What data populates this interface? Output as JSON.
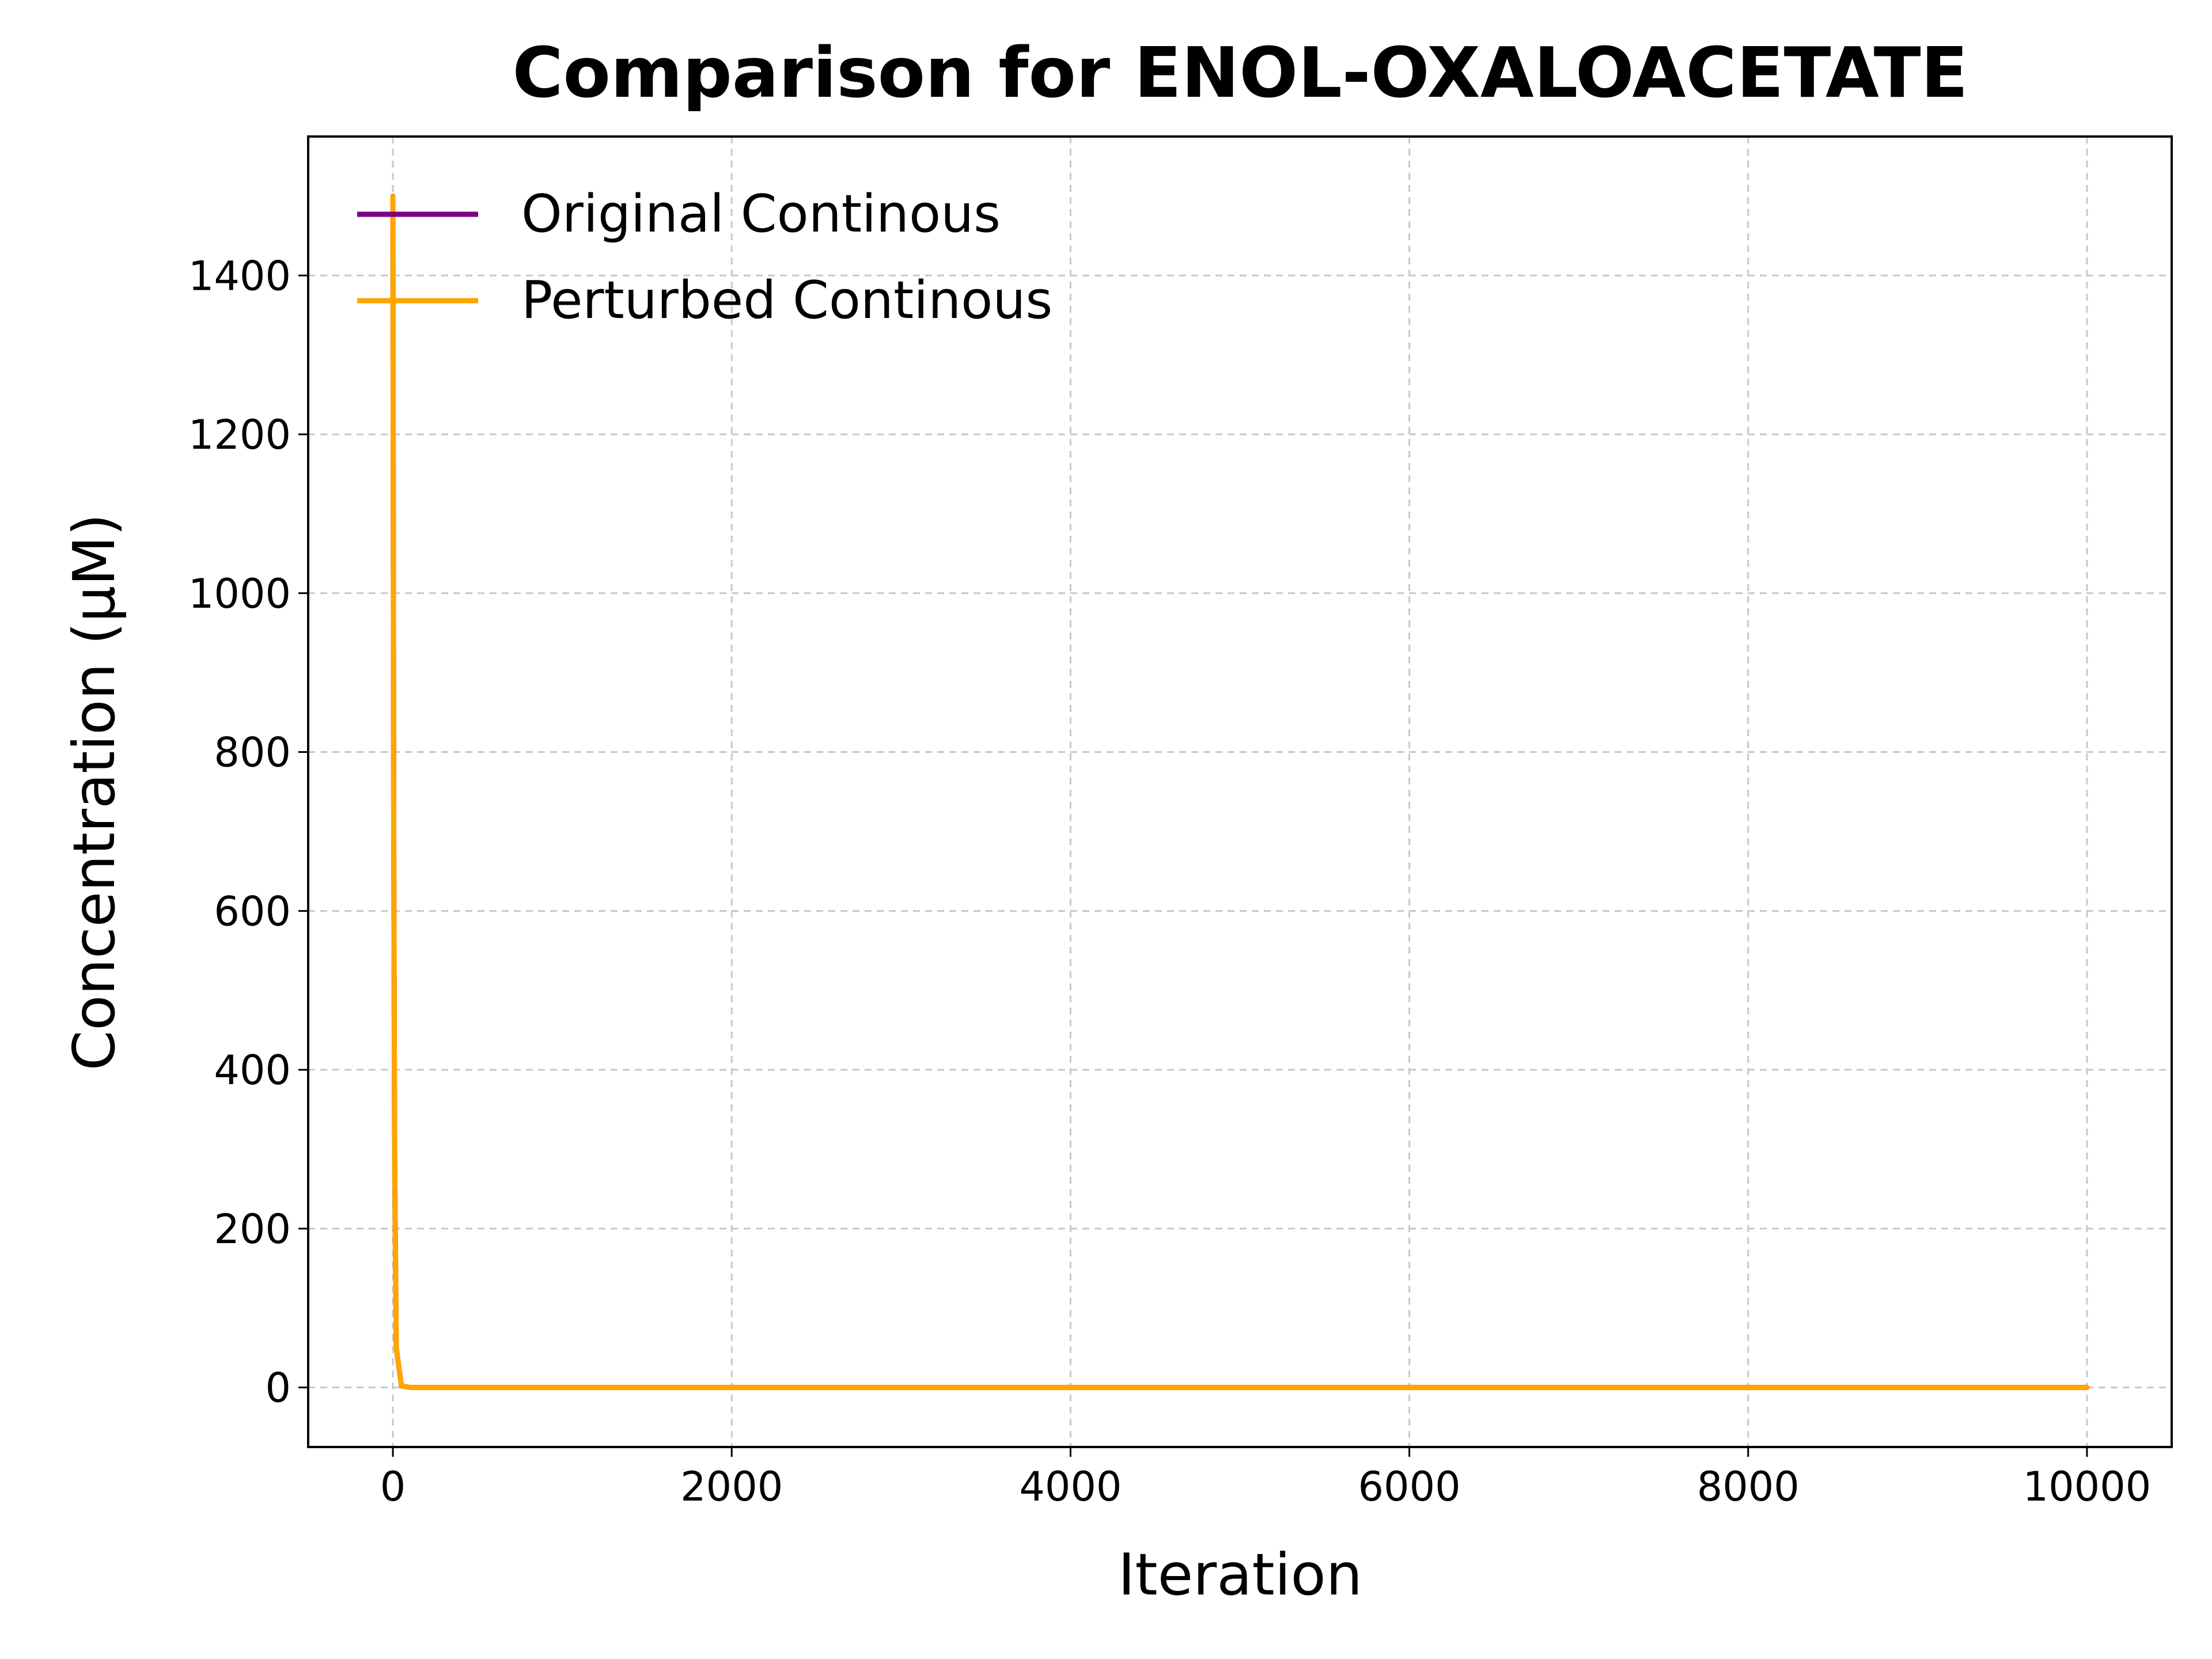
{
  "chart_data": {
    "type": "line",
    "title": "Comparison for ENOL-OXALOACETATE",
    "xlabel": "Iteration",
    "ylabel": "Concentration (μM)",
    "xlim": [
      -500,
      10500
    ],
    "ylim": [
      -75,
      1575
    ],
    "xticks": [
      0,
      2000,
      4000,
      6000,
      8000,
      10000
    ],
    "yticks": [
      0,
      200,
      400,
      600,
      800,
      1000,
      1200,
      1400
    ],
    "grid": true,
    "legend_position": "upper-left",
    "series": [
      {
        "name": "Original Continous",
        "color": "#800080",
        "x": [
          0,
          5,
          10,
          20,
          50,
          100,
          500,
          1000,
          2000,
          4000,
          6000,
          8000,
          10000
        ],
        "y": [
          1500,
          700,
          300,
          50,
          2,
          0,
          0,
          0,
          0,
          0,
          0,
          0,
          0
        ]
      },
      {
        "name": "Perturbed Continous",
        "color": "#FFA500",
        "x": [
          0,
          5,
          10,
          20,
          50,
          100,
          500,
          1000,
          2000,
          4000,
          6000,
          8000,
          10000
        ],
        "y": [
          1500,
          700,
          300,
          50,
          2,
          0,
          0,
          0,
          0,
          0,
          0,
          0,
          0
        ]
      }
    ]
  }
}
